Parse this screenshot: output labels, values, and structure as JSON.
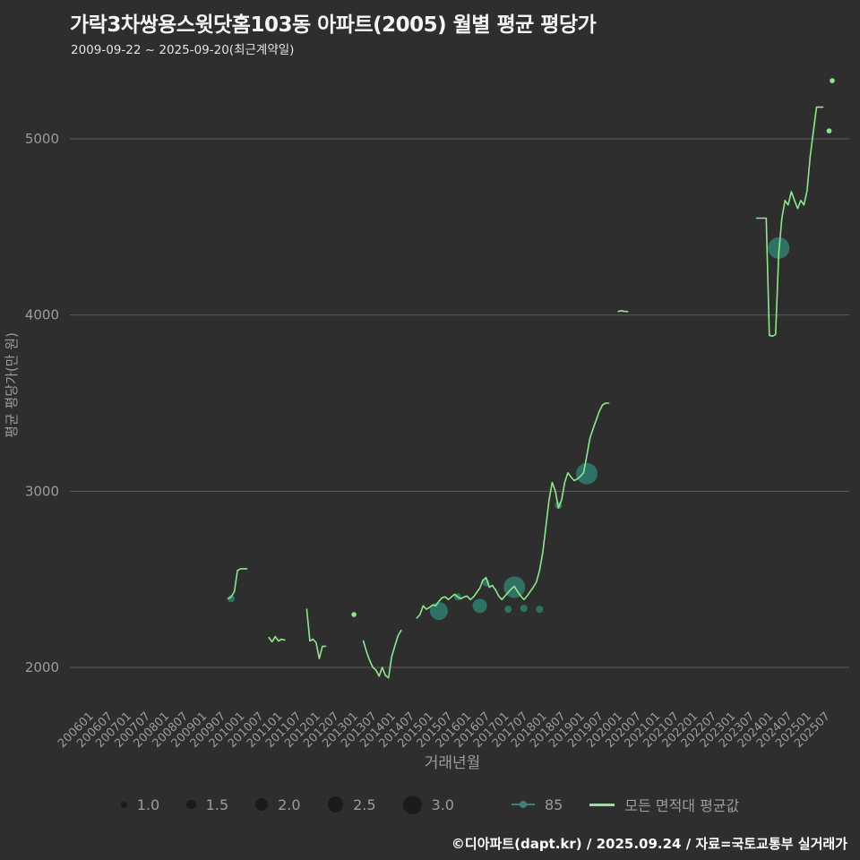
{
  "title": "가락3차쌍용스윗닷홈103동 아파트(2005) 월별 평균 평당가",
  "subtitle": "2009-09-22 ~ 2025-09-20(최근계약일)",
  "footer": "©디아파트(dapt.kr) / 2025.09.24 / 자료=국토교통부 실거래가",
  "colors": {
    "background": "#2e2e2e",
    "grid": "#5c5c5c",
    "axis_text": "#9c9c9c",
    "title_text": "#f5f5f5",
    "subtitle_text": "#e3e3e3",
    "footer_text": "#ffffff",
    "line": "#8de88d",
    "scatter": "#2f8273",
    "legend_text": "#9c9c9c",
    "legend_size_dot": "#1b1b1b"
  },
  "legend": {
    "sizes": [
      {
        "label": "1.0",
        "value": 1.0
      },
      {
        "label": "1.5",
        "value": 1.5
      },
      {
        "label": "2.0",
        "value": 2.0
      },
      {
        "label": "2.5",
        "value": 2.5
      },
      {
        "label": "3.0",
        "value": 3.0
      }
    ],
    "series_85_label": "85",
    "series_avg_label": "모든 면적대 평균값"
  },
  "chart_data": {
    "type": "line",
    "xlabel": "거래년월",
    "ylabel": "평균 평당가(만 원)",
    "y_ticks": [
      2000,
      3000,
      4000,
      5000
    ],
    "ylim": [
      1900,
      5400
    ],
    "x_ticks": [
      "200601",
      "200607",
      "200701",
      "200707",
      "200801",
      "200807",
      "200901",
      "200907",
      "201001",
      "201007",
      "201101",
      "201107",
      "201201",
      "201207",
      "201301",
      "201307",
      "201401",
      "201407",
      "201501",
      "201507",
      "201601",
      "201607",
      "201701",
      "201707",
      "201801",
      "201807",
      "201901",
      "201907",
      "202001",
      "202007",
      "202101",
      "202107",
      "202201",
      "202207",
      "202301",
      "202307",
      "202401",
      "202407",
      "202501",
      "202507"
    ],
    "line_series": {
      "name": "모든 면적대 평균값",
      "color": "#8de88d",
      "segments": [
        [
          [
            "200909",
            2390
          ],
          [
            "200910",
            2400
          ],
          [
            "200911",
            2430
          ],
          [
            "200912",
            2550
          ],
          [
            "201001",
            2560
          ],
          [
            "201002",
            2560
          ],
          [
            "201003",
            2560
          ]
        ],
        [
          [
            "201010",
            2170
          ],
          [
            "201011",
            2145
          ],
          [
            "201012",
            2175
          ],
          [
            "201101",
            2150
          ],
          [
            "201102",
            2160
          ],
          [
            "201103",
            2155
          ]
        ],
        [
          [
            "201110",
            2330
          ],
          [
            "201111",
            2150
          ],
          [
            "201112",
            2160
          ],
          [
            "201201",
            2140
          ],
          [
            "201202",
            2050
          ],
          [
            "201203",
            2120
          ],
          [
            "201204",
            2120
          ]
        ],
        [
          [
            "201301",
            2300
          ]
        ],
        [
          [
            "201304",
            2150
          ],
          [
            "201305",
            2090
          ],
          [
            "201306",
            2040
          ],
          [
            "201307",
            2000
          ],
          [
            "201308",
            1985
          ],
          [
            "201309",
            1950
          ],
          [
            "201310",
            2000
          ],
          [
            "201311",
            1955
          ],
          [
            "201312",
            1940
          ],
          [
            "201401",
            2060
          ],
          [
            "201402",
            2120
          ],
          [
            "201403",
            2180
          ],
          [
            "201404",
            2210
          ]
        ],
        [
          [
            "201409",
            2280
          ],
          [
            "201410",
            2300
          ],
          [
            "201411",
            2350
          ],
          [
            "201412",
            2330
          ],
          [
            "201501",
            2340
          ],
          [
            "201502",
            2355
          ],
          [
            "201503",
            2350
          ],
          [
            "201504",
            2375
          ],
          [
            "201505",
            2395
          ],
          [
            "201506",
            2400
          ],
          [
            "201507",
            2385
          ],
          [
            "201508",
            2400
          ],
          [
            "201509",
            2415
          ],
          [
            "201510",
            2400
          ],
          [
            "201511",
            2390
          ],
          [
            "201512",
            2400
          ],
          [
            "201601",
            2405
          ],
          [
            "201602",
            2385
          ],
          [
            "201603",
            2400
          ],
          [
            "201604",
            2425
          ],
          [
            "201605",
            2450
          ],
          [
            "201606",
            2495
          ],
          [
            "201607",
            2510
          ],
          [
            "201608",
            2455
          ],
          [
            "201609",
            2465
          ],
          [
            "201610",
            2440
          ],
          [
            "201611",
            2405
          ],
          [
            "201612",
            2385
          ],
          [
            "201701",
            2405
          ],
          [
            "201702",
            2425
          ],
          [
            "201703",
            2445
          ],
          [
            "201704",
            2460
          ],
          [
            "201705",
            2430
          ],
          [
            "201706",
            2405
          ],
          [
            "201707",
            2385
          ],
          [
            "201708",
            2405
          ],
          [
            "201709",
            2430
          ],
          [
            "201710",
            2455
          ],
          [
            "201711",
            2485
          ],
          [
            "201712",
            2550
          ],
          [
            "201801",
            2650
          ],
          [
            "201802",
            2800
          ],
          [
            "201803",
            2950
          ],
          [
            "201804",
            3050
          ],
          [
            "201805",
            3000
          ],
          [
            "201806",
            2905
          ],
          [
            "201807",
            2950
          ],
          [
            "201808",
            3050
          ],
          [
            "201809",
            3105
          ],
          [
            "201810",
            3080
          ],
          [
            "201811",
            3060
          ],
          [
            "201812",
            3070
          ],
          [
            "201901",
            3085
          ],
          [
            "201902",
            3105
          ],
          [
            "201903",
            3200
          ],
          [
            "201904",
            3300
          ],
          [
            "201905",
            3355
          ],
          [
            "201906",
            3405
          ],
          [
            "201907",
            3455
          ],
          [
            "201908",
            3490
          ],
          [
            "201909",
            3500
          ],
          [
            "201910",
            3500
          ]
        ],
        [
          [
            "202001",
            4020
          ],
          [
            "202002",
            4025
          ],
          [
            "202003",
            4020
          ],
          [
            "202004",
            4020
          ]
        ],
        [
          [
            "202309",
            4550
          ],
          [
            "202310",
            4550
          ],
          [
            "202311",
            4550
          ],
          [
            "202312",
            4550
          ],
          [
            "202401",
            3885
          ],
          [
            "202402",
            3880
          ],
          [
            "202403",
            3890
          ],
          [
            "202404",
            4350
          ],
          [
            "202405",
            4550
          ],
          [
            "202406",
            4650
          ],
          [
            "202407",
            4625
          ],
          [
            "202408",
            4700
          ],
          [
            "202409",
            4650
          ],
          [
            "202410",
            4605
          ],
          [
            "202411",
            4650
          ],
          [
            "202412",
            4625
          ],
          [
            "202501",
            4705
          ],
          [
            "202502",
            4900
          ],
          [
            "202503",
            5040
          ],
          [
            "202504",
            5180
          ],
          [
            "202505",
            5180
          ],
          [
            "202506",
            5180
          ]
        ],
        [
          [
            "202508",
            5045
          ]
        ],
        [
          [
            "202509",
            5330
          ]
        ]
      ]
    },
    "scatter_series": {
      "name": "85",
      "color": "#2f8273",
      "points": [
        [
          "200910",
          2390,
          1.0
        ],
        [
          "201504",
          2320,
          2.5
        ],
        [
          "201510",
          2400,
          1.0
        ],
        [
          "201605",
          2350,
          2.0
        ],
        [
          "201607",
          2480,
          1.0
        ],
        [
          "201702",
          2330,
          1.0
        ],
        [
          "201704",
          2455,
          3.0
        ],
        [
          "201707",
          2335,
          1.0
        ],
        [
          "201712",
          2330,
          1.0
        ],
        [
          "201806",
          2920,
          1.0
        ],
        [
          "201903",
          3100,
          3.0
        ],
        [
          "202404",
          4380,
          3.0
        ]
      ]
    }
  }
}
